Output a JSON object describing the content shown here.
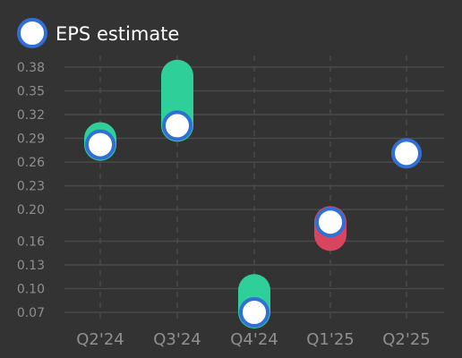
{
  "chart_data": {
    "type": "scatter",
    "categories": [
      "Q2'24",
      "Q3'24",
      "Q4'24",
      "Q1'25",
      "Q2'25"
    ],
    "y_ticks": [
      "0.07",
      "0.10",
      "0.13",
      "0.16",
      "0.20",
      "0.23",
      "0.26",
      "0.29",
      "0.32",
      "0.35",
      "0.38"
    ],
    "ylim": [
      0.055,
      0.39
    ],
    "grid": true,
    "legend_placement": "top-left",
    "series": [
      {
        "name": "EPS estimate",
        "values": [
          0.282,
          0.306,
          0.07,
          0.184,
          0.271
        ]
      }
    ],
    "actual_values": [
      0.29,
      0.369,
      0.098,
      0.168,
      null
    ],
    "colors": {
      "background": "#333333",
      "grid": "#4a4a4a",
      "tick_text": "#8f8f8f",
      "legend_text": "#ffffff",
      "estimate_fill": "#ffffff",
      "estimate_stroke": "#2f6fd6",
      "beat": "#2ecf98",
      "miss": "#d9445e"
    }
  }
}
